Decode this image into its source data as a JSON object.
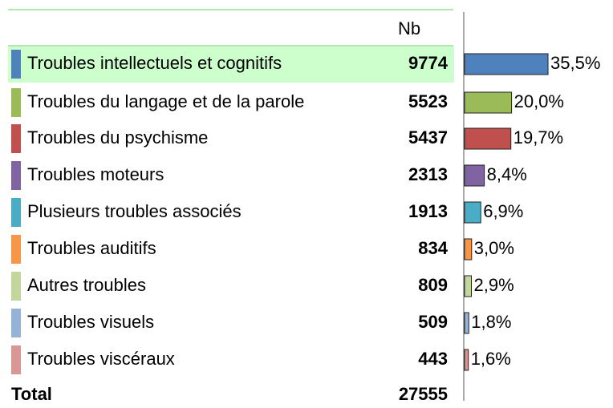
{
  "chart_data": {
    "type": "bar",
    "column_header": "Nb",
    "categories": [
      "Troubles intellectuels et cognitifs",
      "Troubles du langage et de la parole",
      "Troubles du psychisme",
      "Troubles moteurs",
      "Plusieurs troubles associés",
      "Troubles auditifs",
      "Autres troubles",
      "Troubles visuels",
      "Troubles viscéraux"
    ],
    "counts": [
      9774,
      5523,
      5437,
      2313,
      1913,
      834,
      809,
      509,
      443
    ],
    "values": [
      35.5,
      20.0,
      19.7,
      8.4,
      6.9,
      3.0,
      2.9,
      1.8,
      1.6
    ],
    "value_labels": [
      "35,5%",
      "20,0%",
      "19,7%",
      "8,4%",
      "6,9%",
      "3,0%",
      "2,9%",
      "1,8%",
      "1,6%"
    ],
    "colors": [
      "#4f81bd",
      "#9bbb59",
      "#c0504d",
      "#8064a2",
      "#4bacc6",
      "#f79646",
      "#c3d69b",
      "#95b3d7",
      "#d99694"
    ],
    "total_label": "Total",
    "total": 27555
  }
}
